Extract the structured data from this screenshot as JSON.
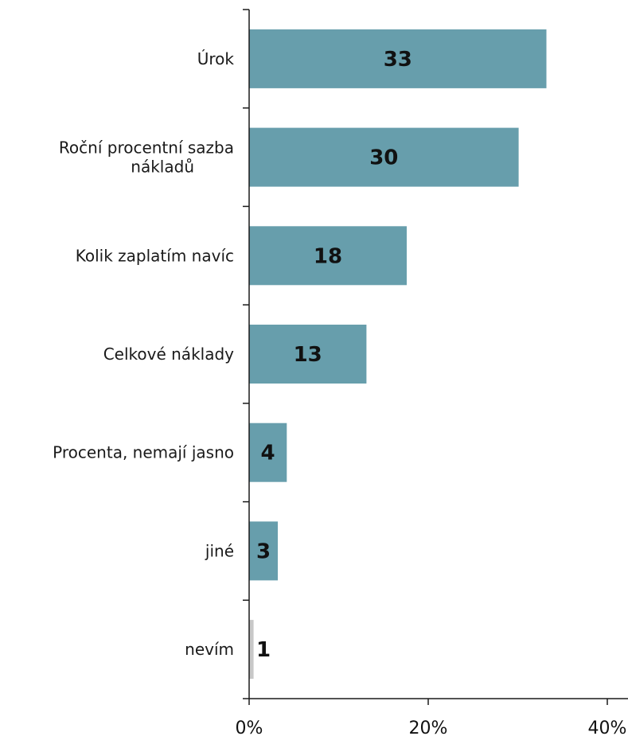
{
  "chart_data": {
    "type": "bar",
    "orientation": "horizontal",
    "categories": [
      [
        "Úrok"
      ],
      [
        "Roční procentní sazba",
        "nákladů"
      ],
      [
        "Kolik zaplatím navíc"
      ],
      [
        "Celkové náklady"
      ],
      [
        "Procenta, nemají jasno"
      ],
      [
        "jiné"
      ],
      [
        "nevím"
      ]
    ],
    "values": [
      33,
      30,
      18,
      13,
      4,
      3,
      1
    ],
    "bar_values": [
      33.2,
      30.1,
      17.6,
      13.1,
      4.2,
      3.2,
      0.5
    ],
    "value_labels": [
      "33",
      "30",
      "18",
      "13",
      "4",
      "3",
      "1"
    ],
    "xlim": [
      0,
      40
    ],
    "x_ticks": [
      {
        "value": 0,
        "label": "0%"
      },
      {
        "value": 20,
        "label": "20%"
      },
      {
        "value": 40,
        "label": "40%"
      }
    ],
    "title": "",
    "xlabel": "",
    "ylabel": "",
    "legend": "none",
    "grid": false,
    "colors": {
      "bar": "#679eac",
      "bar_small": "#c8c8c8",
      "axis": "#1a1a1a",
      "text": "#111111"
    }
  }
}
